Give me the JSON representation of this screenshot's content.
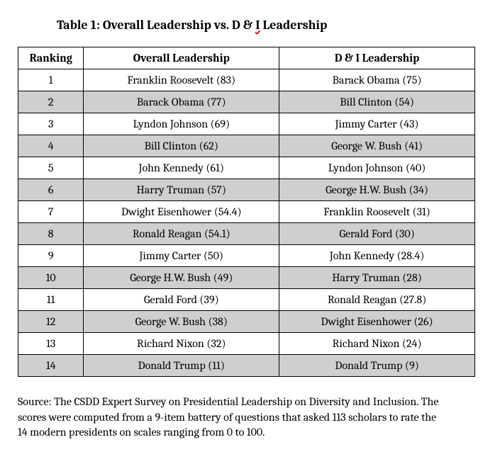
{
  "title_prefix": "Table 1: Overall Leadership vs. D & ",
  "title_underlined": "I",
  "title_suffix": " Leadership",
  "columns": {
    "rank": "Ranking",
    "overall": "Overall Leadership",
    "di": "D & I Leadership"
  },
  "rows": [
    {
      "rank": "1",
      "overall": "Franklin Roosevelt (83)",
      "di": "Barack Obama (75)"
    },
    {
      "rank": "2",
      "overall": "Barack Obama (77)",
      "di": "Bill Clinton (54)"
    },
    {
      "rank": "3",
      "overall": "Lyndon Johnson (69)",
      "di": "Jimmy Carter (43)"
    },
    {
      "rank": "4",
      "overall": "Bill Clinton (62)",
      "di": "George W. Bush (41)"
    },
    {
      "rank": "5",
      "overall": "John Kennedy (61)",
      "di": "Lyndon Johnson (40)"
    },
    {
      "rank": "6",
      "overall": "Harry Truman (57)",
      "di": "George H.W. Bush (34)"
    },
    {
      "rank": "7",
      "overall": "Dwight Eisenhower (54.4)",
      "di": "Franklin Roosevelt (31)"
    },
    {
      "rank": "8",
      "overall": "Ronald Reagan (54.1)",
      "di": "Gerald Ford (30)"
    },
    {
      "rank": "9",
      "overall": "Jimmy Carter (50)",
      "di": "John Kennedy (28.4)"
    },
    {
      "rank": "10",
      "overall": "George H.W. Bush (49)",
      "di": "Harry Truman (28)"
    },
    {
      "rank": "11",
      "overall": "Gerald Ford (39)",
      "di": "Ronald Reagan (27.8)"
    },
    {
      "rank": "12",
      "overall": "George W. Bush (38)",
      "di": "Dwight Eisenhower (26)"
    },
    {
      "rank": "13",
      "overall": "Richard Nixon (32)",
      "di": "Richard Nixon (24)"
    },
    {
      "rank": "14",
      "overall": "Donald Trump (11)",
      "di": "Donald Trump (9)"
    }
  ],
  "shaded_color": "#d0cece",
  "background_color": "#ffffff",
  "border_color": "#000000",
  "source": "Source: The CSDD Expert Survey on Presidential Leadership on Diversity and Inclusion. The scores were computed from a 9-item battery of questions that asked 113 scholars to rate the 14 modern presidents on scales ranging from 0 to 100."
}
